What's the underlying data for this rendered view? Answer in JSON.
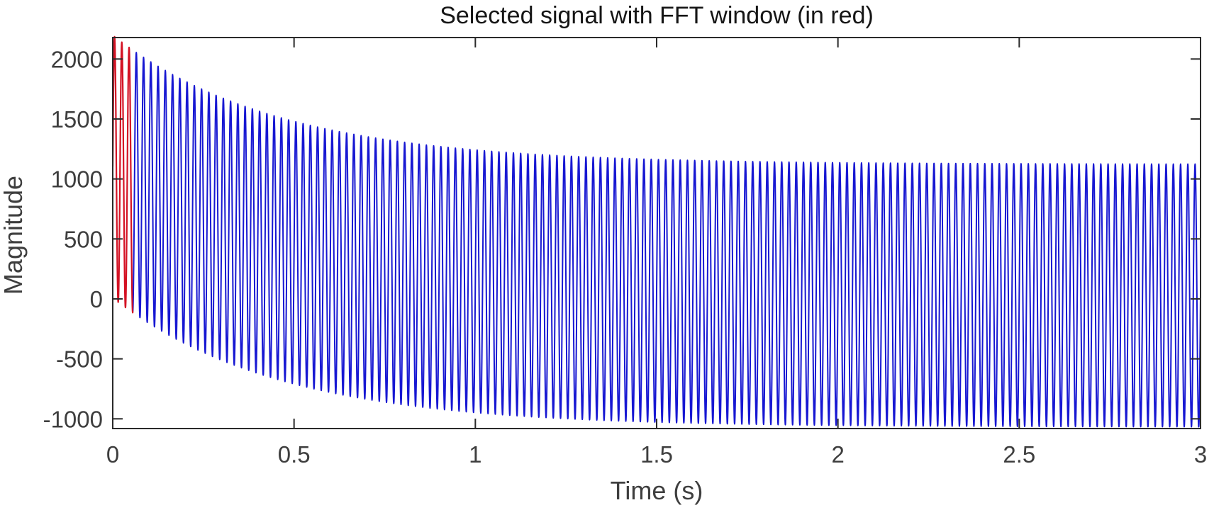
{
  "chart_data": {
    "type": "line",
    "title": "Selected signal with FFT window (in red)",
    "xlabel": "Time (s)",
    "ylabel": "Magnitude",
    "xlim": [
      0,
      3
    ],
    "ylim": [
      -1081,
      2179
    ],
    "x_ticks": {
      "values": [
        0,
        0.5,
        1,
        1.5,
        2,
        2.5,
        3
      ],
      "labels": [
        "0",
        "0.5",
        "1",
        "1.5",
        "2",
        "2.5",
        "3"
      ]
    },
    "y_ticks": {
      "values": [
        -1000,
        -500,
        0,
        500,
        1000,
        1500,
        2000
      ],
      "labels": [
        "-1000",
        "-500",
        "0",
        "500",
        "1000",
        "1500",
        "2000"
      ]
    },
    "grid": false,
    "box": true,
    "tick_direction": "in",
    "legend": "none",
    "series": [
      {
        "name": "signal",
        "color": "#1717d2",
        "t_start": 0.0555,
        "t_end": 3
      },
      {
        "name": "fft-window",
        "color": "#d41224",
        "t_start": 0,
        "t_end": 0.0555
      }
    ],
    "signal_model": {
      "description": "y(t) = dc_base + dc_amp*exp(-t/tau) + amplitude*sin(2*pi*freq_hz*t)",
      "dc_base": 27.5,
      "dc_amp": 1075,
      "tau_s": 0.455,
      "amplitude": 1095,
      "freq_hz": 50,
      "phase_rad": 0,
      "sample_step_s": 0.0005
    },
    "envelope_samples": {
      "t": [
        0,
        0.25,
        0.5,
        0.75,
        1,
        1.5,
        2,
        2.5,
        3
      ],
      "upper": [
        2198,
        1743,
        1480,
        1329,
        1242,
        1162,
        1136,
        1127,
        1124
      ],
      "lower": [
        8,
        -447,
        -710,
        -861,
        -948,
        -1028,
        -1054,
        -1063,
        -1066
      ]
    },
    "axis_color": "#2a2a2a",
    "label_color": "#3e3e3e",
    "title_color": "#151515"
  }
}
